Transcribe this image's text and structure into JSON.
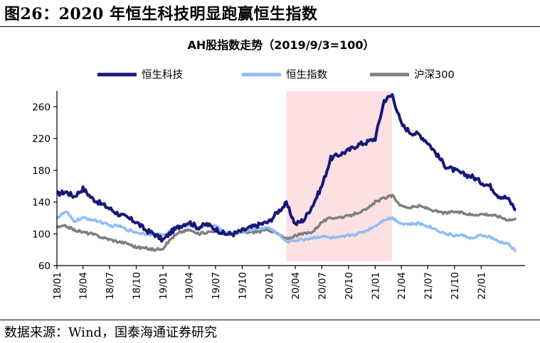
{
  "figure": {
    "title": "图26：2020 年恒生科技明显跑赢恒生指数",
    "source": "数据来源：Wind，国泰海通证券研究"
  },
  "chart_data": {
    "type": "line",
    "title": "AH股指数走势（2019/9/3=100）",
    "xlabel": "",
    "ylabel": "",
    "ylim": [
      60,
      280
    ],
    "yticks": [
      60,
      100,
      140,
      180,
      220,
      260
    ],
    "xlim": [
      "2018-01-01",
      "2022-06-01"
    ],
    "xtick_labels": [
      "18/01",
      "18/04",
      "18/07",
      "18/10",
      "19/01",
      "19/04",
      "19/07",
      "19/10",
      "20/01",
      "20/04",
      "20/07",
      "20/10",
      "21/01",
      "21/04",
      "21/07",
      "21/10",
      "22/01"
    ],
    "xtick_dates": [
      "2018-01-01",
      "2018-04-01",
      "2018-07-01",
      "2018-10-01",
      "2019-01-01",
      "2019-04-01",
      "2019-07-01",
      "2019-10-01",
      "2020-01-01",
      "2020-04-01",
      "2020-07-01",
      "2020-10-01",
      "2021-01-01",
      "2021-04-01",
      "2021-07-01",
      "2021-10-01",
      "2022-01-01"
    ],
    "grid": false,
    "legend": "top",
    "highlight_range": {
      "x": [
        "2020-03-01",
        "2021-02-28"
      ],
      "color": "#fde0e2"
    },
    "x": [
      "2018-01",
      "2018-02",
      "2018-03",
      "2018-04",
      "2018-05",
      "2018-06",
      "2018-07",
      "2018-08",
      "2018-09",
      "2018-10",
      "2018-11",
      "2018-12",
      "2019-01",
      "2019-02",
      "2019-03",
      "2019-04",
      "2019-05",
      "2019-06",
      "2019-07",
      "2019-08",
      "2019-09",
      "2019-10",
      "2019-11",
      "2019-12",
      "2020-01",
      "2020-02",
      "2020-03",
      "2020-04",
      "2020-05",
      "2020-06",
      "2020-07",
      "2020-08",
      "2020-09",
      "2020-10",
      "2020-11",
      "2020-12",
      "2021-01",
      "2021-02",
      "2021-03",
      "2021-04",
      "2021-05",
      "2021-06",
      "2021-07",
      "2021-08",
      "2021-09",
      "2021-10",
      "2021-11",
      "2021-12",
      "2022-01",
      "2022-02",
      "2022-03",
      "2022-04",
      "2022-05"
    ],
    "series": [
      {
        "name": "恒生科技",
        "color": "#17177a",
        "width": 4.5,
        "values": [
          150,
          153,
          147,
          157,
          145,
          138,
          132,
          125,
          120,
          115,
          105,
          100,
          92,
          103,
          110,
          115,
          108,
          112,
          106,
          100,
          100,
          104,
          108,
          112,
          115,
          128,
          138,
          112,
          118,
          137,
          160,
          195,
          200,
          205,
          212,
          215,
          220,
          268,
          275,
          238,
          228,
          225,
          215,
          200,
          185,
          180,
          175,
          172,
          165,
          160,
          148,
          145,
          130
        ]
      },
      {
        "name": "恒生指数",
        "color": "#8fbdf5",
        "width": 4.5,
        "values": [
          120,
          128,
          116,
          120,
          118,
          115,
          110,
          110,
          105,
          102,
          100,
          100,
          98,
          105,
          110,
          112,
          106,
          112,
          110,
          102,
          100,
          103,
          105,
          107,
          108,
          100,
          90,
          92,
          93,
          95,
          97,
          95,
          95,
          98,
          100,
          104,
          110,
          118,
          120,
          113,
          112,
          113,
          110,
          105,
          100,
          98,
          98,
          94,
          98,
          96,
          90,
          88,
          78
        ]
      },
      {
        "name": "沪深300",
        "color": "#7f7f7f",
        "width": 4.5,
        "values": [
          108,
          110,
          105,
          102,
          100,
          96,
          93,
          90,
          88,
          83,
          82,
          80,
          82,
          95,
          102,
          105,
          100,
          102,
          104,
          100,
          100,
          102,
          102,
          103,
          105,
          100,
          93,
          98,
          100,
          103,
          115,
          120,
          121,
          122,
          127,
          130,
          140,
          145,
          148,
          135,
          133,
          135,
          132,
          128,
          126,
          128,
          126,
          124,
          125,
          124,
          122,
          118,
          118
        ]
      }
    ]
  }
}
